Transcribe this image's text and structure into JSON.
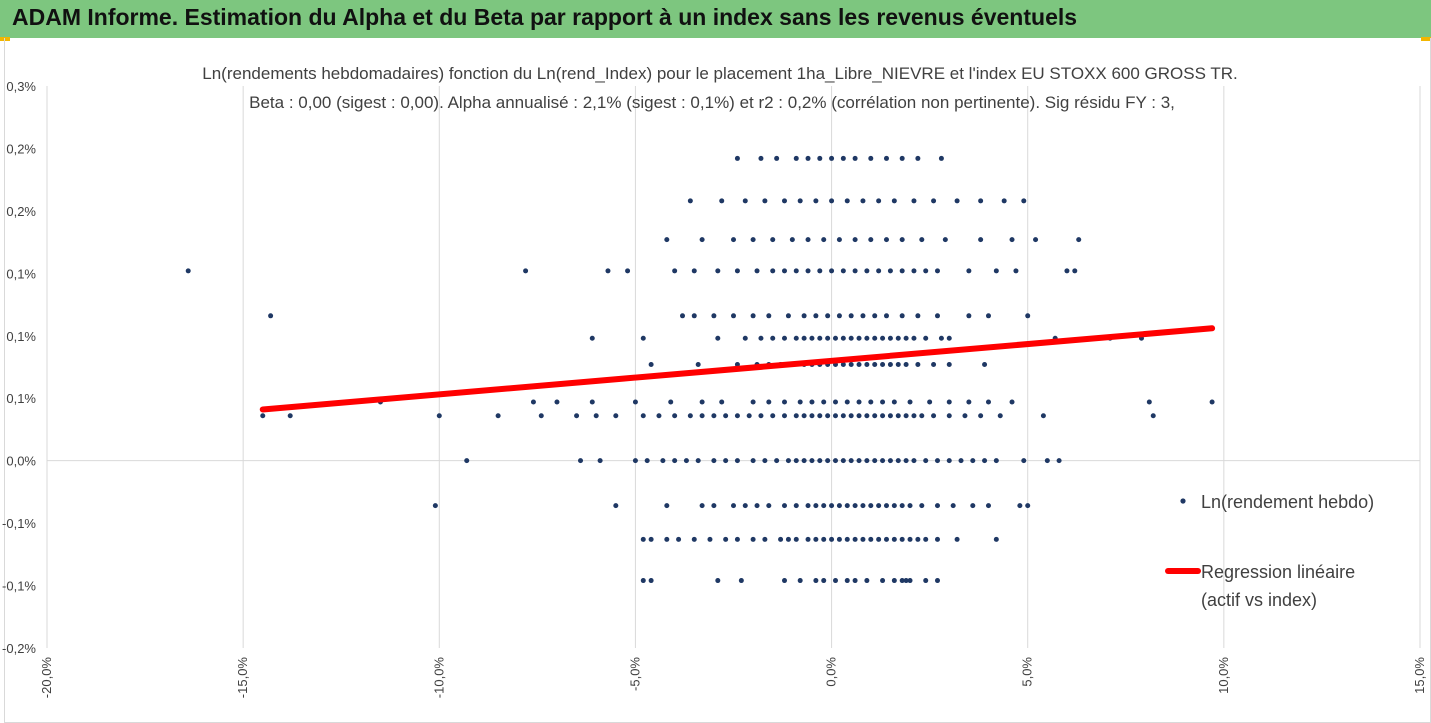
{
  "header": {
    "title": "ADAM Informe. Estimation du Alpha et du Beta par rapport à un index sans les revenus éventuels"
  },
  "colors": {
    "header_bg": "#7dc67f",
    "accent": "#f2b600",
    "points": "#1f3864",
    "regression": "#ff0000"
  },
  "chart_data": {
    "type": "scatter",
    "title": "Ln(rendements hebdomadaires) fonction du Ln(rend_Index) pour le placement 1ha_Libre_NIEVRE et l'index EU STOXX 600 GROSS TR.",
    "subtitle": "Beta : 0,00 (sigest : 0,00). Alpha annualisé : 2,1% (sigest : 0,1%) et r2 : 0,2% (corrélation non pertinente). Sig résidu FY : 3,",
    "xlim": [
      -0.2,
      0.15
    ],
    "ylim": [
      -0.0015,
      0.003
    ],
    "x_ticks": [
      -0.2,
      -0.15,
      -0.1,
      -0.05,
      0.0,
      0.05,
      0.1,
      0.15
    ],
    "x_tick_labels": [
      "-20,0%",
      "-15,0%",
      "-10,0%",
      "-5,0%",
      "0,0%",
      "5,0%",
      "10,0%",
      "15,0%"
    ],
    "y_ticks": [
      0.003,
      0.0025,
      0.002,
      0.0015,
      0.001,
      0.0005,
      0.0,
      -0.0005,
      -0.001,
      -0.0015
    ],
    "y_tick_labels": [
      "0,3%",
      "0,2%",
      "0,2%",
      "0,1%",
      "0,1%",
      "0,1%",
      "0,0%",
      "-0,1%",
      "-0,1%",
      "-0,2%"
    ],
    "grid": "vertical",
    "legend_position": "right",
    "series": [
      {
        "name": "Ln(rendement hebdo)",
        "kind": "scatter",
        "levels": [
          {
            "y": -0.00096,
            "xs": [
              -0.048,
              -0.046,
              -0.029,
              -0.023,
              -0.012,
              -0.008,
              -0.004,
              -0.002,
              0.001,
              0.004,
              0.006,
              0.009,
              0.013,
              0.016,
              0.018,
              0.019,
              0.02,
              0.024,
              0.027
            ]
          },
          {
            "y": -0.00063,
            "xs": [
              -0.048,
              -0.046,
              -0.042,
              -0.039,
              -0.035,
              -0.031,
              -0.027,
              -0.024,
              -0.02,
              -0.017,
              -0.013,
              -0.011,
              -0.009,
              -0.006,
              -0.004,
              -0.002,
              0,
              0.002,
              0.004,
              0.006,
              0.008,
              0.01,
              0.012,
              0.014,
              0.016,
              0.018,
              0.02,
              0.022,
              0.024,
              0.027,
              0.032,
              0.042
            ]
          },
          {
            "y": -0.00036,
            "xs": [
              -0.101,
              -0.055,
              -0.042,
              -0.033,
              -0.03,
              -0.025,
              -0.022,
              -0.019,
              -0.016,
              -0.012,
              -0.009,
              -0.006,
              -0.004,
              -0.002,
              0,
              0.002,
              0.004,
              0.006,
              0.008,
              0.01,
              0.012,
              0.014,
              0.016,
              0.018,
              0.02,
              0.023,
              0.027,
              0.031,
              0.036,
              0.04,
              0.048,
              0.05
            ]
          },
          {
            "y": 0.0,
            "xs": [
              -0.093,
              -0.064,
              -0.059,
              -0.05,
              -0.047,
              -0.043,
              -0.04,
              -0.037,
              -0.034,
              -0.03,
              -0.027,
              -0.024,
              -0.02,
              -0.017,
              -0.014,
              -0.011,
              -0.009,
              -0.007,
              -0.005,
              -0.003,
              -0.001,
              0.001,
              0.003,
              0.005,
              0.007,
              0.009,
              0.011,
              0.013,
              0.015,
              0.017,
              0.019,
              0.021,
              0.024,
              0.027,
              0.03,
              0.033,
              0.036,
              0.039,
              0.042,
              0.049,
              0.055,
              0.058
            ]
          },
          {
            "y": 0.00036,
            "xs": [
              -0.145,
              -0.138,
              -0.1,
              -0.085,
              -0.074,
              -0.065,
              -0.06,
              -0.055,
              -0.048,
              -0.044,
              -0.04,
              -0.036,
              -0.033,
              -0.03,
              -0.027,
              -0.024,
              -0.021,
              -0.018,
              -0.015,
              -0.012,
              -0.009,
              -0.007,
              -0.005,
              -0.003,
              -0.001,
              0.001,
              0.003,
              0.005,
              0.007,
              0.009,
              0.011,
              0.013,
              0.015,
              0.017,
              0.019,
              0.021,
              0.023,
              0.026,
              0.03,
              0.034,
              0.038,
              0.043,
              0.054,
              0.082
            ]
          },
          {
            "y": 0.00047,
            "xs": [
              -0.115,
              -0.076,
              -0.07,
              -0.061,
              -0.05,
              -0.041,
              -0.033,
              -0.028,
              -0.02,
              -0.016,
              -0.012,
              -0.008,
              -0.005,
              -0.002,
              0.001,
              0.004,
              0.007,
              0.01,
              0.013,
              0.016,
              0.02,
              0.025,
              0.03,
              0.035,
              0.04,
              0.046,
              0.081,
              0.097
            ]
          },
          {
            "y": 0.00077,
            "xs": [
              -0.046,
              -0.034,
              -0.024,
              -0.019,
              -0.016,
              -0.013,
              -0.01,
              -0.007,
              -0.005,
              -0.003,
              -0.001,
              0.001,
              0.003,
              0.005,
              0.007,
              0.009,
              0.011,
              0.013,
              0.015,
              0.017,
              0.019,
              0.022,
              0.026,
              0.03,
              0.039
            ]
          },
          {
            "y": 0.00098,
            "xs": [
              -0.061,
              -0.048,
              -0.029,
              -0.022,
              -0.018,
              -0.015,
              -0.012,
              -0.009,
              -0.007,
              -0.005,
              -0.003,
              -0.001,
              0.001,
              0.003,
              0.005,
              0.007,
              0.009,
              0.011,
              0.013,
              0.015,
              0.017,
              0.019,
              0.021,
              0.024,
              0.028,
              0.03,
              0.057,
              0.071,
              0.079
            ]
          },
          {
            "y": 0.00116,
            "xs": [
              -0.143,
              -0.038,
              -0.035,
              -0.03,
              -0.025,
              -0.02,
              -0.016,
              -0.011,
              -0.007,
              -0.004,
              -0.001,
              0.002,
              0.005,
              0.008,
              0.011,
              0.014,
              0.018,
              0.022,
              0.027,
              0.035,
              0.04,
              0.05
            ]
          },
          {
            "y": 0.00152,
            "xs": [
              -0.164,
              -0.078,
              -0.057,
              -0.052,
              -0.04,
              -0.035,
              -0.029,
              -0.024,
              -0.019,
              -0.015,
              -0.012,
              -0.009,
              -0.006,
              -0.003,
              0,
              0.003,
              0.006,
              0.009,
              0.012,
              0.015,
              0.018,
              0.021,
              0.024,
              0.027,
              0.035,
              0.042,
              0.047,
              0.06,
              0.062
            ]
          },
          {
            "y": 0.00177,
            "xs": [
              -0.042,
              -0.033,
              -0.025,
              -0.02,
              -0.015,
              -0.01,
              -0.006,
              -0.002,
              0.002,
              0.006,
              0.01,
              0.014,
              0.018,
              0.023,
              0.029,
              0.038,
              0.046,
              0.052,
              0.063
            ]
          },
          {
            "y": 0.00208,
            "xs": [
              -0.036,
              -0.028,
              -0.022,
              -0.017,
              -0.012,
              -0.008,
              -0.004,
              0,
              0.004,
              0.008,
              0.012,
              0.016,
              0.021,
              0.026,
              0.032,
              0.038,
              0.044,
              0.049
            ]
          },
          {
            "y": 0.00242,
            "xs": [
              -0.024,
              -0.018,
              -0.014,
              -0.009,
              -0.006,
              -0.003,
              0,
              0.003,
              0.006,
              0.01,
              0.014,
              0.018,
              0.022,
              0.028
            ]
          }
        ]
      },
      {
        "name": "Regression linéaire",
        "name_line2": "(actif vs index)",
        "kind": "line",
        "x": [
          -0.145,
          0.097
        ],
        "y": [
          0.00041,
          0.00106
        ]
      }
    ]
  }
}
